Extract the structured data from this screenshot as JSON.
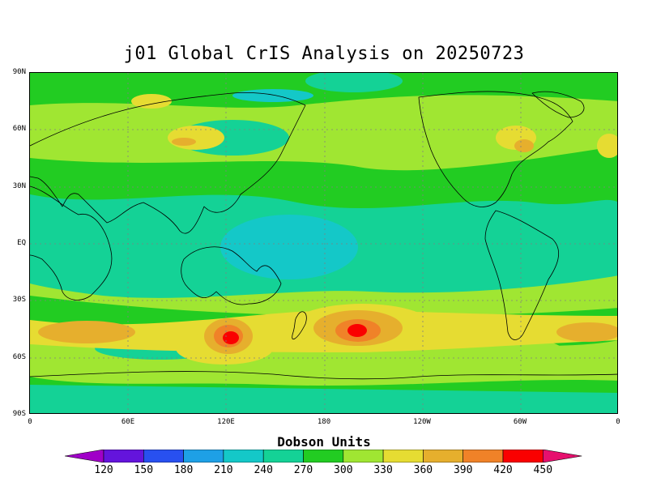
{
  "title": "j01 Global CrIS Analysis on 20250723",
  "map": {
    "lat_labels": [
      "90N",
      "60N",
      "30N",
      "EQ",
      "30S",
      "60S",
      "90S"
    ],
    "lon_labels": [
      "0",
      "60E",
      "120E",
      "180",
      "120W",
      "60W",
      "0"
    ]
  },
  "colorbar": {
    "title": "Dobson Units",
    "levels": [
      "120",
      "150",
      "180",
      "210",
      "240",
      "270",
      "300",
      "330",
      "360",
      "390",
      "420",
      "450"
    ],
    "colors": [
      "#a000c8",
      "#6414dc",
      "#2850f0",
      "#1ea0e6",
      "#14c8c8",
      "#14d296",
      "#22cc22",
      "#a0e632",
      "#e6dc32",
      "#e6af2d",
      "#f08228",
      "#fa0000",
      "#e6106e"
    ]
  }
}
